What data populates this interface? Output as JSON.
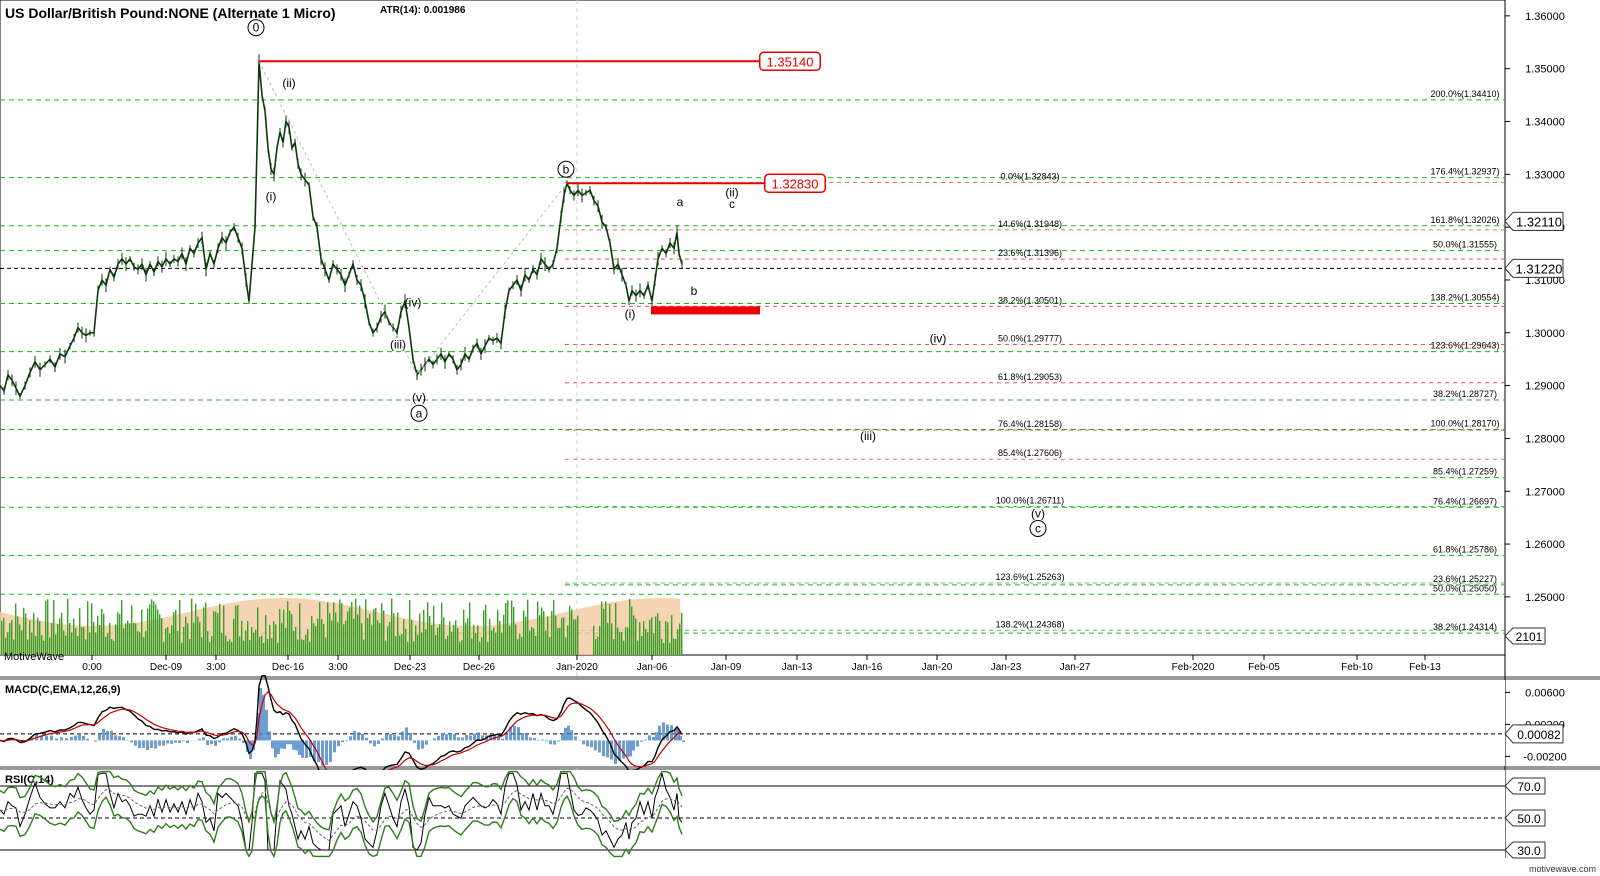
{
  "header": {
    "title": "US Dollar/British Pound:NONE (Alternate 1 Micro)",
    "atr": "ATR(14): 0.001986"
  },
  "watermark": "motivewave.com",
  "volume_label": "MotiveWave",
  "colors": {
    "price": "#0a3a0a",
    "fib_green": "#1fb31f",
    "fib_red": "#e06666",
    "resistance_red": "#e60000",
    "macd_line": "#000000",
    "macd_signal": "#c00000",
    "macd_hist": "#4a86c5",
    "rsi_line": "#000000",
    "rsi_band": "#2e7d1e",
    "volume": "#3aa02a",
    "volume_area": "#f4c9a0"
  },
  "chart_data": [
    {
      "type": "line",
      "name": "price",
      "ylim": [
        1.239,
        1.363
      ],
      "y_ticks": [
        "1.36000",
        "1.35000",
        "1.34000",
        "1.33000",
        "1.32000",
        "1.31000",
        "1.30000",
        "1.29000",
        "1.28000",
        "1.27000",
        "1.26000",
        "1.25000"
      ],
      "x_ticks": [
        "0:00",
        "Dec-09",
        "3:00",
        "Dec-16",
        "3:00",
        "Dec-23",
        "Dec-26",
        "Jan-2020",
        "Jan-06",
        "Jan-09",
        "Jan-13",
        "Jan-16",
        "Jan-20",
        "Jan-23",
        "Jan-27",
        "Feb-2020",
        "Feb-05",
        "Feb-10",
        "Feb-13"
      ],
      "price_series": [
        [
          0,
          1.29
        ],
        [
          4,
          1.289
        ],
        [
          8,
          1.292
        ],
        [
          12,
          1.291
        ],
        [
          16,
          1.2895
        ],
        [
          20,
          1.288
        ],
        [
          25,
          1.29
        ],
        [
          30,
          1.2925
        ],
        [
          35,
          1.2945
        ],
        [
          40,
          1.293
        ],
        [
          45,
          1.294
        ],
        [
          50,
          1.295
        ],
        [
          55,
          1.2935
        ],
        [
          60,
          1.296
        ],
        [
          65,
          1.2955
        ],
        [
          70,
          1.2975
        ],
        [
          74,
          1.299
        ],
        [
          78,
          1.301
        ],
        [
          82,
          1.3
        ],
        [
          86,
          1.2995
        ],
        [
          90,
          1.3
        ],
        [
          94,
          1.3
        ],
        [
          98,
          1.308
        ],
        [
          102,
          1.31
        ],
        [
          106,
          1.309
        ],
        [
          110,
          1.312
        ],
        [
          114,
          1.3105
        ],
        [
          118,
          1.313
        ],
        [
          122,
          1.314
        ],
        [
          126,
          1.313
        ],
        [
          130,
          1.314
        ],
        [
          134,
          1.3125
        ],
        [
          138,
          1.312
        ],
        [
          142,
          1.313
        ],
        [
          146,
          1.311
        ],
        [
          150,
          1.313
        ],
        [
          154,
          1.3115
        ],
        [
          158,
          1.3135
        ],
        [
          162,
          1.3125
        ],
        [
          166,
          1.314
        ],
        [
          170,
          1.313
        ],
        [
          174,
          1.314
        ],
        [
          178,
          1.3135
        ],
        [
          182,
          1.315
        ],
        [
          186,
          1.313
        ],
        [
          190,
          1.316
        ],
        [
          194,
          1.315
        ],
        [
          198,
          1.317
        ],
        [
          202,
          1.318
        ],
        [
          206,
          1.312
        ],
        [
          210,
          1.315
        ],
        [
          214,
          1.313
        ],
        [
          218,
          1.316
        ],
        [
          222,
          1.318
        ],
        [
          226,
          1.317
        ],
        [
          230,
          1.319
        ],
        [
          234,
          1.32
        ],
        [
          238,
          1.318
        ],
        [
          242,
          1.316
        ],
        [
          246,
          1.31
        ],
        [
          249,
          1.306
        ],
        [
          252,
          1.313
        ],
        [
          255,
          1.32
        ],
        [
          257,
          1.335
        ],
        [
          259,
          1.3514
        ],
        [
          262,
          1.345
        ],
        [
          265,
          1.342
        ],
        [
          268,
          1.335
        ],
        [
          271,
          1.331
        ],
        [
          274,
          1.33
        ],
        [
          277,
          1.335
        ],
        [
          280,
          1.338
        ],
        [
          283,
          1.336
        ],
        [
          286,
          1.34
        ],
        [
          289,
          1.339
        ],
        [
          292,
          1.335
        ],
        [
          295,
          1.336
        ],
        [
          298,
          1.332
        ],
        [
          301,
          1.33
        ],
        [
          305,
          1.329
        ],
        [
          309,
          1.328
        ],
        [
          313,
          1.322
        ],
        [
          317,
          1.32
        ],
        [
          321,
          1.314
        ],
        [
          325,
          1.312
        ],
        [
          329,
          1.31
        ],
        [
          333,
          1.313
        ],
        [
          337,
          1.312
        ],
        [
          341,
          1.311
        ],
        [
          345,
          1.309
        ],
        [
          349,
          1.311
        ],
        [
          353,
          1.313
        ],
        [
          357,
          1.31
        ],
        [
          361,
          1.309
        ],
        [
          365,
          1.306
        ],
        [
          369,
          1.302
        ],
        [
          373,
          1.3
        ],
        [
          377,
          1.301
        ],
        [
          381,
          1.303
        ],
        [
          385,
          1.304
        ],
        [
          389,
          1.302
        ],
        [
          393,
          1.301
        ],
        [
          397,
          1.3
        ],
        [
          401,
          1.304
        ],
        [
          405,
          1.306
        ],
        [
          409,
          1.301
        ],
        [
          413,
          1.295
        ],
        [
          417,
          1.292
        ],
        [
          421,
          1.293
        ],
        [
          425,
          1.294
        ],
        [
          429,
          1.295
        ],
        [
          433,
          1.294
        ],
        [
          437,
          1.295
        ],
        [
          441,
          1.296
        ],
        [
          445,
          1.2945
        ],
        [
          449,
          1.296
        ],
        [
          453,
          1.295
        ],
        [
          457,
          1.293
        ],
        [
          461,
          1.294
        ],
        [
          465,
          1.296
        ],
        [
          469,
          1.295
        ],
        [
          473,
          1.297
        ],
        [
          477,
          1.298
        ],
        [
          481,
          1.296
        ],
        [
          485,
          1.2975
        ],
        [
          489,
          1.299
        ],
        [
          493,
          1.2985
        ],
        [
          497,
          1.299
        ],
        [
          501,
          1.298
        ],
        [
          505,
          1.304
        ],
        [
          509,
          1.308
        ],
        [
          513,
          1.309
        ],
        [
          517,
          1.31
        ],
        [
          521,
          1.308
        ],
        [
          525,
          1.311
        ],
        [
          529,
          1.31
        ],
        [
          533,
          1.312
        ],
        [
          537,
          1.311
        ],
        [
          541,
          1.314
        ],
        [
          545,
          1.313
        ],
        [
          549,
          1.312
        ],
        [
          553,
          1.313
        ],
        [
          557,
          1.316
        ],
        [
          561,
          1.322
        ],
        [
          564,
          1.326
        ],
        [
          567,
          1.3283
        ],
        [
          570,
          1.327
        ],
        [
          574,
          1.326
        ],
        [
          578,
          1.327
        ],
        [
          582,
          1.326
        ],
        [
          586,
          1.3265
        ],
        [
          590,
          1.327
        ],
        [
          594,
          1.325
        ],
        [
          598,
          1.324
        ],
        [
          602,
          1.321
        ],
        [
          606,
          1.32
        ],
        [
          610,
          1.317
        ],
        [
          614,
          1.312
        ],
        [
          618,
          1.313
        ],
        [
          622,
          1.311
        ],
        [
          626,
          1.309
        ],
        [
          629,
          1.306
        ],
        [
          632,
          1.308
        ],
        [
          636,
          1.307
        ],
        [
          640,
          1.308
        ],
        [
          644,
          1.307
        ],
        [
          648,
          1.309
        ],
        [
          652,
          1.306
        ],
        [
          655,
          1.31
        ],
        [
          658,
          1.314
        ],
        [
          662,
          1.316
        ],
        [
          666,
          1.315
        ],
        [
          670,
          1.317
        ],
        [
          674,
          1.316
        ],
        [
          677,
          1.319
        ],
        [
          679,
          1.315
        ],
        [
          682,
          1.313
        ]
      ],
      "wave_labels": [
        {
          "text": "0",
          "x": 256,
          "v": 1.357,
          "circle": true
        },
        {
          "text": "(ii)",
          "x": 289,
          "v": 1.3465
        },
        {
          "text": "(i)",
          "x": 271,
          "v": 1.325
        },
        {
          "text": "(iv)",
          "x": 413,
          "v": 1.305
        },
        {
          "text": "(iii)",
          "x": 398,
          "v": 1.297
        },
        {
          "text": "(v)",
          "x": 419,
          "v": 1.287
        },
        {
          "text": "a",
          "x": 419,
          "v": 1.284,
          "circle": true
        },
        {
          "text": "b",
          "x": 566,
          "v": 1.3302,
          "circle": true
        },
        {
          "text": "(ii)",
          "x": 732,
          "v": 1.3258
        },
        {
          "text": "c",
          "x": 732,
          "v": 1.3236
        },
        {
          "text": "a",
          "x": 680,
          "v": 1.324
        },
        {
          "text": "b",
          "x": 694,
          "v": 1.3072
        },
        {
          "text": "(i)",
          "x": 630,
          "v": 1.3028
        },
        {
          "text": "(iv)",
          "x": 938,
          "v": 1.2982
        },
        {
          "text": "(iii)",
          "x": 868,
          "v": 1.2797
        },
        {
          "text": "(v)",
          "x": 1038,
          "v": 1.265
        },
        {
          "text": "c",
          "x": 1038,
          "v": 1.2622,
          "circle": true
        }
      ],
      "resistance_lines": [
        {
          "value": 1.3514,
          "x1": 259,
          "x2": 770,
          "label": "1.35140",
          "label_x": 790
        },
        {
          "value": 1.3283,
          "x1": 567,
          "x2": 780,
          "label": "1.32830",
          "label_x": 795
        }
      ],
      "target_box": {
        "value_top": 1.305,
        "value_bottom": 1.3037,
        "x1": 651,
        "x2": 760
      },
      "fib_lines_green": [
        {
          "value": 1.3441,
          "x1": 0,
          "x2": 1505,
          "label": "200.0%(1.34410)",
          "label_x": 1465
        },
        {
          "value": 1.32937,
          "x1": 0,
          "x2": 1505,
          "label": "176.4%(1.32937)",
          "label_x": 1465
        },
        {
          "value": 1.32026,
          "x1": 0,
          "x2": 1505,
          "label": "161.8%(1.32026)",
          "label_x": 1465
        },
        {
          "value": 1.31555,
          "x1": 0,
          "x2": 1505,
          "label": "50.0%(1.31555)",
          "label_x": 1465
        },
        {
          "value": 1.30554,
          "x1": 0,
          "x2": 1505,
          "label": "138.2%(1.30554)",
          "label_x": 1465
        },
        {
          "value": 1.29643,
          "x1": 0,
          "x2": 1505,
          "label": "123.6%(1.29643)",
          "label_x": 1465
        },
        {
          "value": 1.28727,
          "x1": 0,
          "x2": 1505,
          "label": "38.2%(1.28727)",
          "label_x": 1465
        },
        {
          "value": 1.2817,
          "x1": 0,
          "x2": 1505,
          "label": "100.0%(1.28170)",
          "label_x": 1465
        },
        {
          "value": 1.27259,
          "x1": 0,
          "x2": 1505,
          "label": "85.4%(1.27259)",
          "label_x": 1465
        },
        {
          "value": 1.26697,
          "x1": 0,
          "x2": 1505,
          "label": "76.4%(1.26697)",
          "label_x": 1465
        },
        {
          "value": 1.25786,
          "x1": 0,
          "x2": 1505,
          "label": "61.8%(1.25786)",
          "label_x": 1465
        },
        {
          "value": 1.2505,
          "x1": 0,
          "x2": 1505,
          "label": "50.0%(1.25050)",
          "label_x": 1465
        },
        {
          "value": 1.24314,
          "x1": 0,
          "x2": 1505,
          "label": "38.2%(1.24314)",
          "label_x": 1465
        },
        {
          "value": 1.25227,
          "x1": 565,
          "x2": 1505,
          "label": "23.6%(1.25227)",
          "label_x": 1465
        }
      ],
      "fib_lines_red": [
        {
          "value": 1.32843,
          "x1": 565,
          "x2": 1505,
          "label": "0.0%(1.32843)",
          "label_x": 1030,
          "color": "#d04040"
        },
        {
          "value": 1.31948,
          "x1": 565,
          "x2": 1505,
          "label": "14.6%(1.31948)",
          "label_x": 1030,
          "color": "#d04040"
        },
        {
          "value": 1.31396,
          "x1": 565,
          "x2": 1505,
          "label": "23.6%(1.31396)",
          "label_x": 1030,
          "color": "#d04040"
        },
        {
          "value": 1.30501,
          "x1": 565,
          "x2": 1505,
          "label": "38.2%(1.30501)",
          "label_x": 1030,
          "color": "#d04040"
        },
        {
          "value": 1.29777,
          "x1": 565,
          "x2": 1505,
          "label": "50.0%(1.29777)",
          "label_x": 1030,
          "color": "#d04040"
        },
        {
          "value": 1.29053,
          "x1": 565,
          "x2": 1505,
          "label": "61.8%(1.29053)",
          "label_x": 1030,
          "color": "#d04040"
        },
        {
          "value": 1.28158,
          "x1": 565,
          "x2": 1505,
          "label": "76.4%(1.28158)",
          "label_x": 1030,
          "color": "#d04040"
        },
        {
          "value": 1.27606,
          "x1": 565,
          "x2": 1505,
          "label": "85.4%(1.27606)",
          "label_x": 1030,
          "color": "#d04040"
        },
        {
          "value": 1.26711,
          "x1": 565,
          "x2": 1505,
          "label": "100.0%(1.26711)",
          "label_x": 1030,
          "color": "#1fb31f"
        },
        {
          "value": 1.25263,
          "x1": 565,
          "x2": 1505,
          "label": "123.6%(1.25263)",
          "label_x": 1030,
          "color": "#1fb31f"
        },
        {
          "value": 1.24368,
          "x1": 565,
          "x2": 1505,
          "label": "138.2%(1.24368)",
          "label_x": 1030,
          "color": "#1fb31f"
        }
      ],
      "current_price": {
        "value": 1.3122,
        "label": "1.31220"
      },
      "high_price": {
        "value": 1.3211,
        "label": "1.32110"
      },
      "volume_readout": "2101"
    },
    {
      "type": "line",
      "name": "MACD",
      "title": "MACD(C,EMA,12,26,9)",
      "ylim": [
        -0.0032,
        0.0078
      ],
      "y_ticks": [
        "0.00600",
        "0.00200",
        "-0.00200"
      ],
      "current_label": "0.00082"
    },
    {
      "type": "line",
      "name": "RSI",
      "title": "RSI(C,14)",
      "ylim": [
        25,
        80
      ],
      "y_ticks": [
        "70.0",
        "50.0",
        "30.0"
      ]
    }
  ]
}
